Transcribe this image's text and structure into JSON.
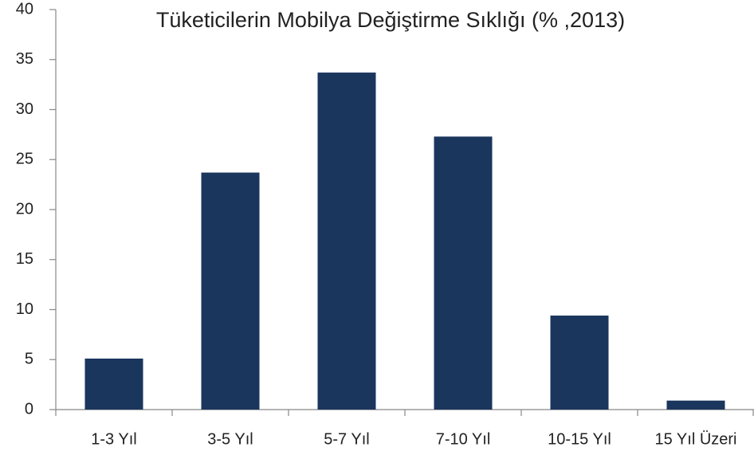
{
  "chart_data": {
    "type": "bar",
    "title": "Tüketicilerin Mobilya Değiştirme Sıklığı (% ,2013)",
    "categories": [
      "1-3 Yıl",
      "3-5 Yıl",
      "5-7 Yıl",
      "7-10 Yıl",
      "10-15 Yıl",
      "15 Yıl Üzeri"
    ],
    "values": [
      5.1,
      23.7,
      33.7,
      27.3,
      9.4,
      0.9
    ],
    "color": "#1b365d",
    "ylim": [
      0,
      40
    ],
    "yticks": [
      0,
      5,
      10,
      15,
      20,
      25,
      30,
      35,
      40
    ],
    "grid": false
  }
}
